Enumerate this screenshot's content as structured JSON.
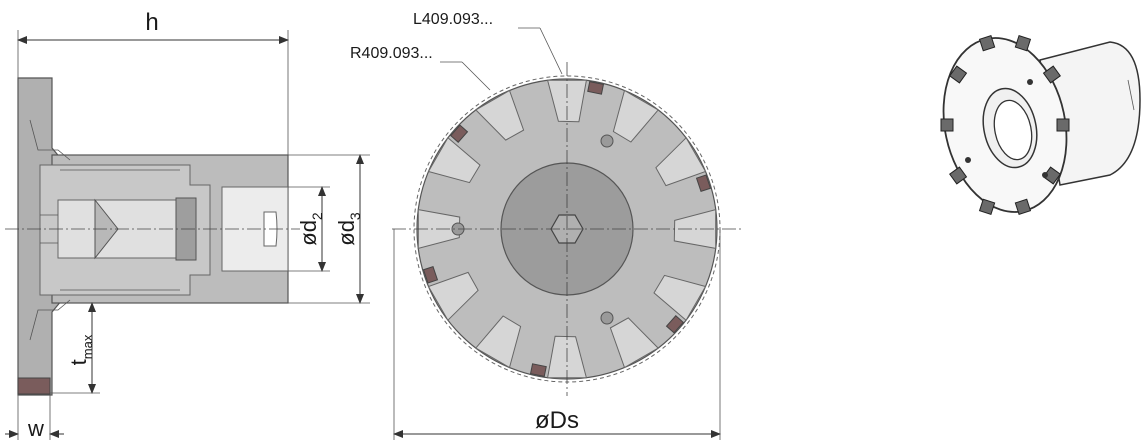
{
  "labels": {
    "h": "h",
    "w": "w",
    "t": "t",
    "t_sub": "max",
    "d2_prefix": "ød",
    "d2_sub": "2",
    "d3_prefix": "ød",
    "d3_sub": "3",
    "ds": "øDs",
    "left_insert": "L409.093...",
    "right_insert": "R409.093..."
  },
  "colors": {
    "body": "#b4b4b4",
    "body_dark": "#8a8a8a",
    "pocket": "#d2d2d2",
    "insert": "#7a5c5c",
    "hub": "#9a9a9a",
    "line": "#333333"
  }
}
